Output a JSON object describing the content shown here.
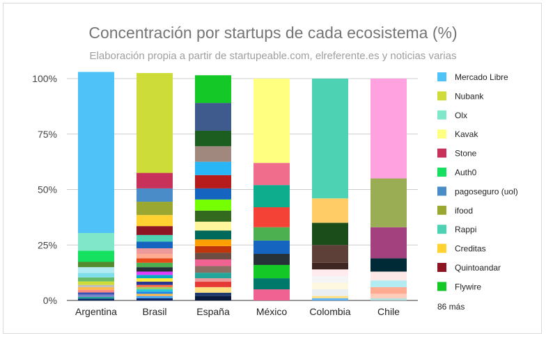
{
  "chart_data": {
    "type": "bar",
    "stacked": true,
    "title": "Concentración por startups de cada ecosistema (%)",
    "subtitle": "Elaboración propia a partir de startupeable.com, elreferente.es y noticias varias",
    "categories": [
      "Argentina",
      "Brasil",
      "España",
      "México",
      "Colombia",
      "Chile"
    ],
    "ylim": [
      0,
      100
    ],
    "yticks": [
      "0%",
      "25%",
      "50%",
      "75%",
      "100%"
    ],
    "legend_position": "right",
    "legend": [
      {
        "name": "Mercado Libre",
        "color": "#4fc3f7"
      },
      {
        "name": "Nubank",
        "color": "#cddc39"
      },
      {
        "name": "Olx",
        "color": "#80e8c8"
      },
      {
        "name": "Kavak",
        "color": "#ffff80"
      },
      {
        "name": "Stone",
        "color": "#c8325a"
      },
      {
        "name": "Auth0",
        "color": "#16e060"
      },
      {
        "name": "pagoseguro (uol)",
        "color": "#4a8cc8"
      },
      {
        "name": "ifood",
        "color": "#9aa832"
      },
      {
        "name": "Rappi",
        "color": "#4dd2b4"
      },
      {
        "name": "Creditas",
        "color": "#ffd232"
      },
      {
        "name": "Quintoandar",
        "color": "#8c1423"
      },
      {
        "name": "Flywire",
        "color": "#14c828"
      }
    ],
    "legend_more": "86 más",
    "stacks": [
      {
        "category": "Argentina",
        "segments": [
          {
            "value": 0.8,
            "color": "#0c2a6b"
          },
          {
            "value": 0.8,
            "color": "#26a69a"
          },
          {
            "value": 1.0,
            "color": "#7986cb"
          },
          {
            "value": 1.0,
            "color": "#3f51b5"
          },
          {
            "value": 1.2,
            "color": "#ff8a80"
          },
          {
            "value": 1.2,
            "color": "#ffb74d"
          },
          {
            "value": 1.0,
            "color": "#bdbdbd"
          },
          {
            "value": 1.6,
            "color": "#cddc39"
          },
          {
            "value": 1.8,
            "color": "#66bb6a"
          },
          {
            "value": 2.0,
            "color": "#80deea"
          },
          {
            "value": 2.6,
            "color": "#b2ebf2"
          },
          {
            "value": 2.4,
            "color": "#558b2f"
          },
          {
            "value": 5.0,
            "color": "#16e060"
          },
          {
            "value": 8.0,
            "color": "#80e8c8"
          },
          {
            "value": 72.6,
            "color": "#4fc3f7"
          }
        ]
      },
      {
        "category": "Brasil",
        "segments": [
          {
            "value": 1.0,
            "color": "#0c2a6b"
          },
          {
            "value": 1.0,
            "color": "#42a5f5"
          },
          {
            "value": 1.0,
            "color": "#ffb74d"
          },
          {
            "value": 1.0,
            "color": "#1e88e5"
          },
          {
            "value": 1.0,
            "color": "#26c6da"
          },
          {
            "value": 1.0,
            "color": "#9ccc65"
          },
          {
            "value": 1.0,
            "color": "#ff7043"
          },
          {
            "value": 1.5,
            "color": "#283593"
          },
          {
            "value": 1.5,
            "color": "#ffeb3b"
          },
          {
            "value": 1.5,
            "color": "#00acc1"
          },
          {
            "value": 1.5,
            "color": "#e040fb"
          },
          {
            "value": 2.0,
            "color": "#263238"
          },
          {
            "value": 2.0,
            "color": "#4caf50"
          },
          {
            "value": 2.0,
            "color": "#e64a19"
          },
          {
            "value": 2.0,
            "color": "#ffab91"
          },
          {
            "value": 2.5,
            "color": "#ef9a9a"
          },
          {
            "value": 3.0,
            "color": "#1565c0"
          },
          {
            "value": 3.0,
            "color": "#4dd2b4"
          },
          {
            "value": 4.0,
            "color": "#8c1423"
          },
          {
            "value": 5.0,
            "color": "#ffd232"
          },
          {
            "value": 6.0,
            "color": "#9aa832"
          },
          {
            "value": 6.0,
            "color": "#4a8cc8"
          },
          {
            "value": 7.0,
            "color": "#c8325a"
          },
          {
            "value": 45.0,
            "color": "#cddc39"
          }
        ]
      },
      {
        "category": "España",
        "segments": [
          {
            "value": 2.0,
            "color": "#0a1a3c"
          },
          {
            "value": 1.5,
            "color": "#1e3a6e"
          },
          {
            "value": 2.5,
            "color": "#ffe082"
          },
          {
            "value": 2.5,
            "color": "#e53935"
          },
          {
            "value": 1.5,
            "color": "#ef9a9a"
          },
          {
            "value": 2.5,
            "color": "#26a69a"
          },
          {
            "value": 3.0,
            "color": "#8d6e63"
          },
          {
            "value": 3.0,
            "color": "#f06292"
          },
          {
            "value": 3.0,
            "color": "#6d4c41"
          },
          {
            "value": 3.0,
            "color": "#bf360c"
          },
          {
            "value": 3.0,
            "color": "#ffa000"
          },
          {
            "value": 4.0,
            "color": "#00695c"
          },
          {
            "value": 4.0,
            "color": "#fff59d"
          },
          {
            "value": 5.0,
            "color": "#33691e"
          },
          {
            "value": 5.0,
            "color": "#76ff03"
          },
          {
            "value": 5.0,
            "color": "#1565c0"
          },
          {
            "value": 6.0,
            "color": "#b71c1c"
          },
          {
            "value": 6.0,
            "color": "#29b6f6"
          },
          {
            "value": 7.0,
            "color": "#a1887f"
          },
          {
            "value": 7.0,
            "color": "#1b5e20"
          },
          {
            "value": 12.5,
            "color": "#3f5a8c"
          },
          {
            "value": 12.5,
            "color": "#14c828"
          }
        ]
      },
      {
        "category": "México",
        "segments": [
          {
            "value": 5.0,
            "color": "#f06292"
          },
          {
            "value": 5.0,
            "color": "#00796b"
          },
          {
            "value": 6.0,
            "color": "#14c828"
          },
          {
            "value": 5.0,
            "color": "#263238"
          },
          {
            "value": 6.0,
            "color": "#1565c0"
          },
          {
            "value": 6.0,
            "color": "#4caf50"
          },
          {
            "value": 9.0,
            "color": "#f44336"
          },
          {
            "value": 10.0,
            "color": "#0ead8e"
          },
          {
            "value": 10.0,
            "color": "#f06e8c"
          },
          {
            "value": 38.0,
            "color": "#ffff80"
          }
        ]
      },
      {
        "category": "Colombia",
        "segments": [
          {
            "value": 1.0,
            "color": "#64b5f6"
          },
          {
            "value": 1.0,
            "color": "#ffe082"
          },
          {
            "value": 3.0,
            "color": "#eceff1"
          },
          {
            "value": 3.0,
            "color": "#fff8e1"
          },
          {
            "value": 3.0,
            "color": "#f5f5f5"
          },
          {
            "value": 3.0,
            "color": "#ffebee"
          },
          {
            "value": 3.0,
            "color": "#3e2723"
          },
          {
            "value": 8.0,
            "color": "#5d4037"
          },
          {
            "value": 10.0,
            "color": "#1b4d1b"
          },
          {
            "value": 11.0,
            "color": "#ffcc66"
          },
          {
            "value": 54.0,
            "color": "#4dd2b4"
          }
        ]
      },
      {
        "category": "Chile",
        "segments": [
          {
            "value": 1.0,
            "color": "#b2dfdb"
          },
          {
            "value": 2.0,
            "color": "#ffccbc"
          },
          {
            "value": 3.0,
            "color": "#ffab91"
          },
          {
            "value": 3.0,
            "color": "#b2ebf2"
          },
          {
            "value": 4.0,
            "color": "#fde8e8"
          },
          {
            "value": 6.0,
            "color": "#002b36"
          },
          {
            "value": 14.0,
            "color": "#a2417e"
          },
          {
            "value": 22.0,
            "color": "#9aad55"
          },
          {
            "value": 45.0,
            "color": "#ffa2df"
          }
        ]
      }
    ]
  }
}
